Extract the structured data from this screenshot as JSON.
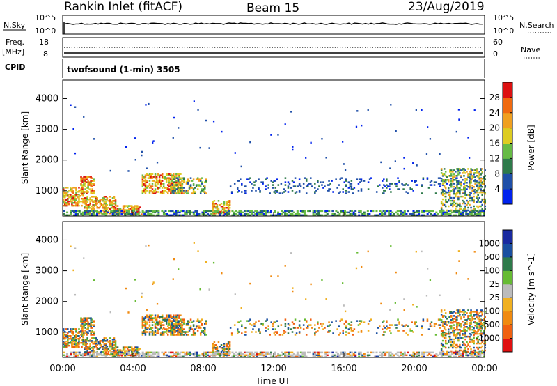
{
  "header": {
    "title": "Rankin Inlet (fitACF)",
    "beam": "Beam 15",
    "date": "23/Aug/2019"
  },
  "top_panels": {
    "nsky_label": "N.Sky",
    "nsearch_label": "N.Search",
    "noise_left_ticks": [
      "10^5",
      "10^0"
    ],
    "noise_right_ticks": [
      "10^5",
      "10^0"
    ],
    "freq_label": "Freq.",
    "freq_unit": "[MHz]",
    "freq_ticks": [
      "18",
      "8"
    ],
    "nave_label": "Nave",
    "nave_ticks": [
      "60",
      "0"
    ],
    "cpid_label": "CPID",
    "cpid_text": "twofsound (1-min) 3505"
  },
  "colors": {
    "power_scale": [
      "#0022ee",
      "#1f4fa8",
      "#2e7a4a",
      "#66bb44",
      "#ddcc22",
      "#f0a020",
      "#f06a10",
      "#dd1111"
    ],
    "velocity_scale": [
      "#e01010",
      "#f06010",
      "#f08a10",
      "#f0b020",
      "#bbbbbb",
      "#66bb33",
      "#2e7a4a",
      "#1a4fa0",
      "#1a2aa0"
    ],
    "ground_scatter": "#bbbbbb"
  },
  "chart_data": [
    {
      "type": "heatmap",
      "panel": "power",
      "xlabel": "",
      "ylabel": "Slant Range [km]",
      "x_range": [
        "00:00",
        "24:00"
      ],
      "ylim": [
        180,
        4600
      ],
      "y_ticks": [
        1000,
        2000,
        3000,
        4000
      ],
      "colorbar_label": "Power [dB]",
      "colorbar_ticks": [
        4,
        8,
        12,
        16,
        20,
        24,
        28
      ],
      "colorbar_range": [
        0,
        32
      ],
      "echo_regions": [
        {
          "t_start": 0.0,
          "t_end": 1.2,
          "r_min": 500,
          "r_max": 1100,
          "level": "high"
        },
        {
          "t_start": 1.0,
          "t_end": 1.8,
          "r_min": 900,
          "r_max": 1450,
          "level": "high"
        },
        {
          "t_start": 1.2,
          "t_end": 3.0,
          "r_min": 250,
          "r_max": 800,
          "level": "high"
        },
        {
          "t_start": 3.0,
          "t_end": 4.5,
          "r_min": 220,
          "r_max": 500,
          "level": "high"
        },
        {
          "t_start": 4.5,
          "t_end": 6.8,
          "r_min": 900,
          "r_max": 1550,
          "level": "high"
        },
        {
          "t_start": 6.2,
          "t_end": 8.2,
          "r_min": 900,
          "r_max": 1400,
          "level": "medium"
        },
        {
          "t_start": 8.5,
          "t_end": 9.5,
          "r_min": 250,
          "r_max": 700,
          "level": "high"
        },
        {
          "t_start": 9.5,
          "t_end": 24.0,
          "r_min": 900,
          "r_max": 1400,
          "level": "low"
        },
        {
          "t_start": 21.5,
          "t_end": 24.0,
          "r_min": 300,
          "r_max": 1700,
          "level": "medium"
        }
      ]
    },
    {
      "type": "heatmap",
      "panel": "velocity",
      "xlabel": "Time UT",
      "ylabel": "Slant Range [km]",
      "x_range": [
        "00:00",
        "24:00"
      ],
      "x_ticks": [
        "00:00",
        "04:00",
        "08:00",
        "12:00",
        "16:00",
        "20:00",
        "00:00"
      ],
      "ylim": [
        180,
        4600
      ],
      "y_ticks": [
        1000,
        2000,
        3000,
        4000
      ],
      "colorbar_label": "Velocity [m s^-1]",
      "colorbar_ticks": [
        "1000",
        "500",
        "100",
        "25",
        "-25",
        "-100",
        "-500",
        "-1000"
      ]
    }
  ]
}
